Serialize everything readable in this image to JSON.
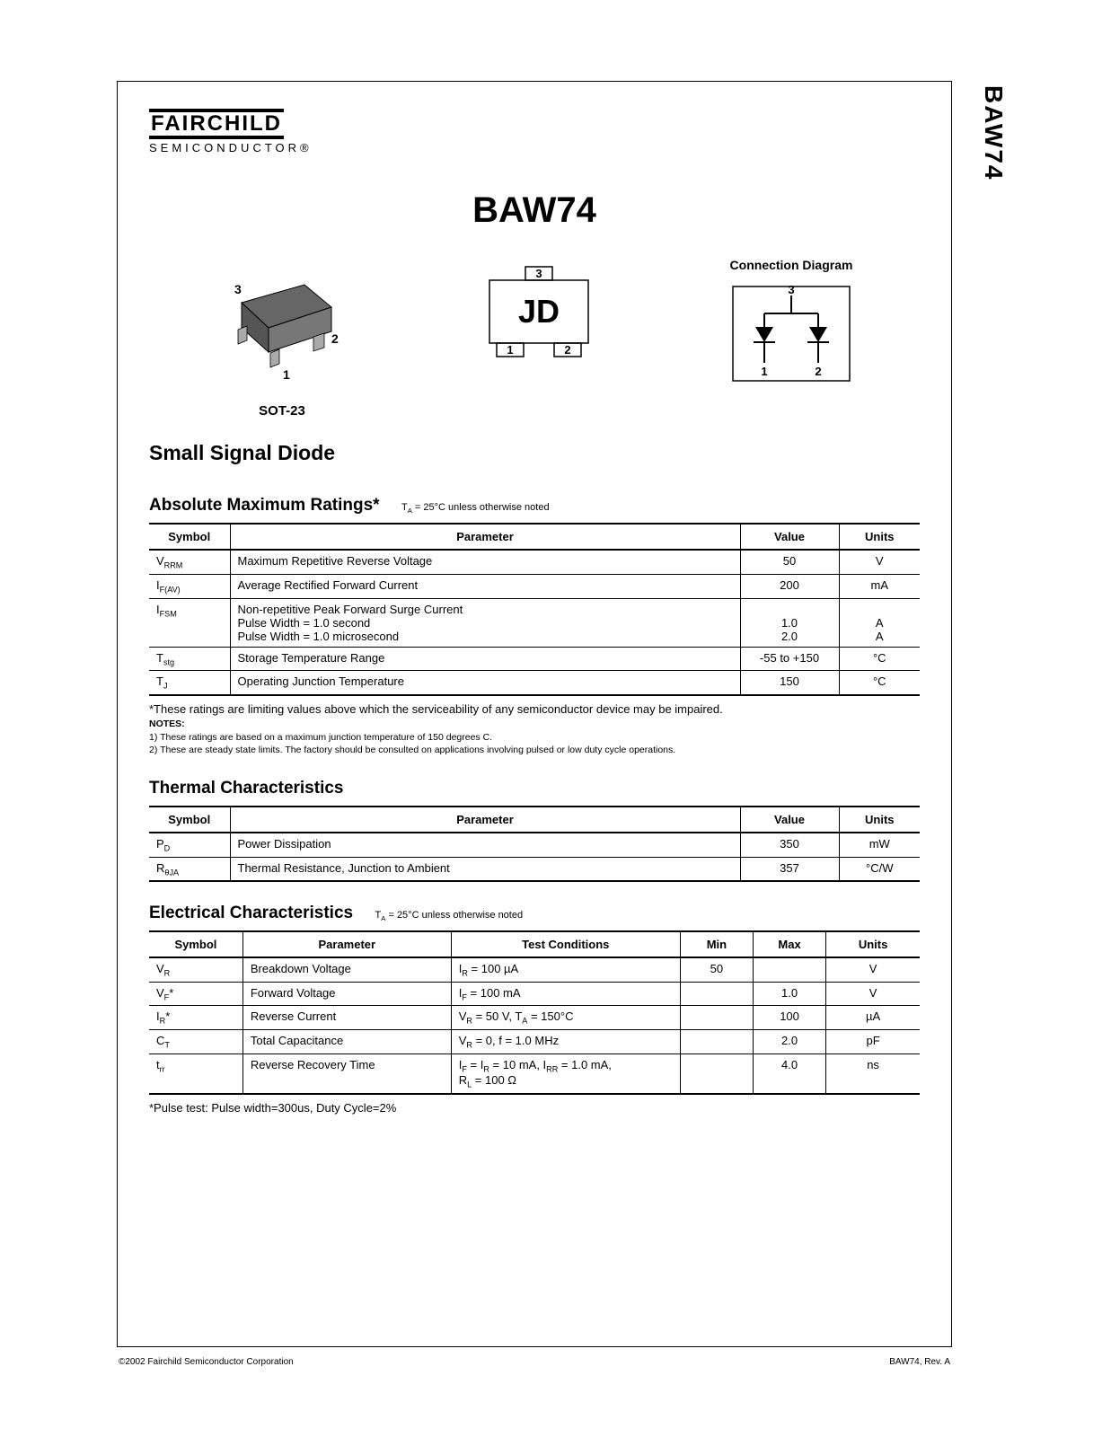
{
  "vertical_label": "BAW74",
  "logo": {
    "top": "FAIRCHILD",
    "bottom": "SEMICONDUCTOR®"
  },
  "part_number": "BAW74",
  "package": {
    "label": "SOT-23",
    "marking": "JD",
    "pins": {
      "p1": "1",
      "p2": "2",
      "p3": "3"
    }
  },
  "connection_title": "Connection Diagram",
  "product_title": "Small Signal Diode",
  "abs_max": {
    "heading": "Absolute Maximum Ratings*",
    "condition": "TA = 25°C unless otherwise noted",
    "headers": {
      "symbol": "Symbol",
      "parameter": "Parameter",
      "value": "Value",
      "units": "Units"
    },
    "rows": [
      {
        "sym": "V",
        "sub": "RRM",
        "param": "Maximum Repetitive Reverse Voltage",
        "value": "50",
        "units": "V"
      },
      {
        "sym": "I",
        "sub": "F(AV)",
        "param": "Average Rectified Forward Current",
        "value": "200",
        "units": "mA"
      },
      {
        "sym": "I",
        "sub": "FSM",
        "param": "Non-repetitive Peak Forward Surge Current\nPulse Width = 1.0 second\nPulse Width = 1.0 microsecond",
        "value": "\n1.0\n2.0",
        "units": "\nA\nA"
      },
      {
        "sym": "T",
        "sub": "stg",
        "param": "Storage Temperature Range",
        "value": "-55 to +150",
        "units": "°C"
      },
      {
        "sym": "T",
        "sub": "J",
        "param": "Operating Junction Temperature",
        "value": "150",
        "units": "°C"
      }
    ],
    "foot_star": "*These ratings are limiting values above which the serviceability of any semiconductor device may be impaired.",
    "notes_label": "NOTES:",
    "note1": "1) These ratings are based on a maximum junction temperature of 150 degrees C.",
    "note2": "2) These are steady state limits. The factory should be consulted on applications involving pulsed or low duty cycle operations."
  },
  "thermal": {
    "heading": "Thermal Characteristics",
    "headers": {
      "symbol": "Symbol",
      "parameter": "Parameter",
      "value": "Value",
      "units": "Units"
    },
    "rows": [
      {
        "sym": "P",
        "sub": "D",
        "param": "Power Dissipation",
        "value": "350",
        "units": "mW"
      },
      {
        "sym": "R",
        "sub": "θJA",
        "param": "Thermal Resistance, Junction to Ambient",
        "value": "357",
        "units": "°C/W"
      }
    ]
  },
  "electrical": {
    "heading": "Electrical Characteristics",
    "condition": "TA = 25°C unless otherwise noted",
    "headers": {
      "symbol": "Symbol",
      "parameter": "Parameter",
      "test": "Test Conditions",
      "min": "Min",
      "max": "Max",
      "units": "Units"
    },
    "rows": [
      {
        "sym": "V",
        "sub": "R",
        "star": "",
        "param": "Breakdown Voltage",
        "test": "IR = 100 µA",
        "min": "50",
        "max": "",
        "units": "V"
      },
      {
        "sym": "V",
        "sub": "F",
        "star": "*",
        "param": "Forward Voltage",
        "test": "IF = 100 mA",
        "min": "",
        "max": "1.0",
        "units": "V"
      },
      {
        "sym": "I",
        "sub": "R",
        "star": "*",
        "param": "Reverse Current",
        "test": "VR = 50 V, TA = 150°C",
        "min": "",
        "max": "100",
        "units": "µA"
      },
      {
        "sym": "C",
        "sub": "T",
        "star": "",
        "param": "Total Capacitance",
        "test": "VR = 0, f = 1.0 MHz",
        "min": "",
        "max": "2.0",
        "units": "pF"
      },
      {
        "sym": "t",
        "sub": "rr",
        "star": "",
        "param": "Reverse Recovery Time",
        "test": "IF = IR = 10 mA, IRR = 1.0 mA,\nRL = 100 Ω",
        "min": "",
        "max": "4.0",
        "units": "ns"
      }
    ],
    "foot_star": "*Pulse test: Pulse width=300us, Duty Cycle=2%"
  },
  "footer": {
    "left": "©2002 Fairchild Semiconductor Corporation",
    "right": "BAW74, Rev. A"
  }
}
